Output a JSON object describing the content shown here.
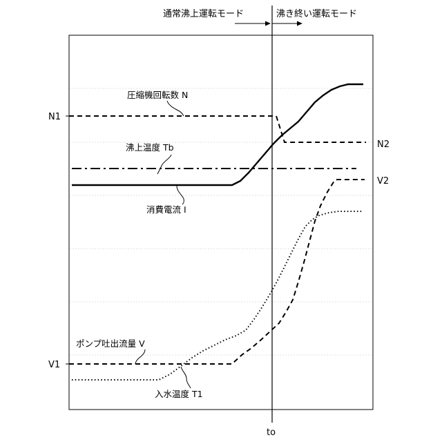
{
  "modes": {
    "normal": "通常沸上運転モード",
    "end": "沸き終い運転モード"
  },
  "time_label": "to",
  "curves": {
    "compressor_speed": "圧縮機回転数 N",
    "boil_temp": "沸上温度 Tb",
    "current": "消費電流 I",
    "pump_flow": "ポンプ吐出流量 V",
    "inlet_temp": "入水温度 T1"
  },
  "levels": {
    "n1": "N1",
    "n2": "N2",
    "v1": "V1",
    "v2": "V2"
  }
}
